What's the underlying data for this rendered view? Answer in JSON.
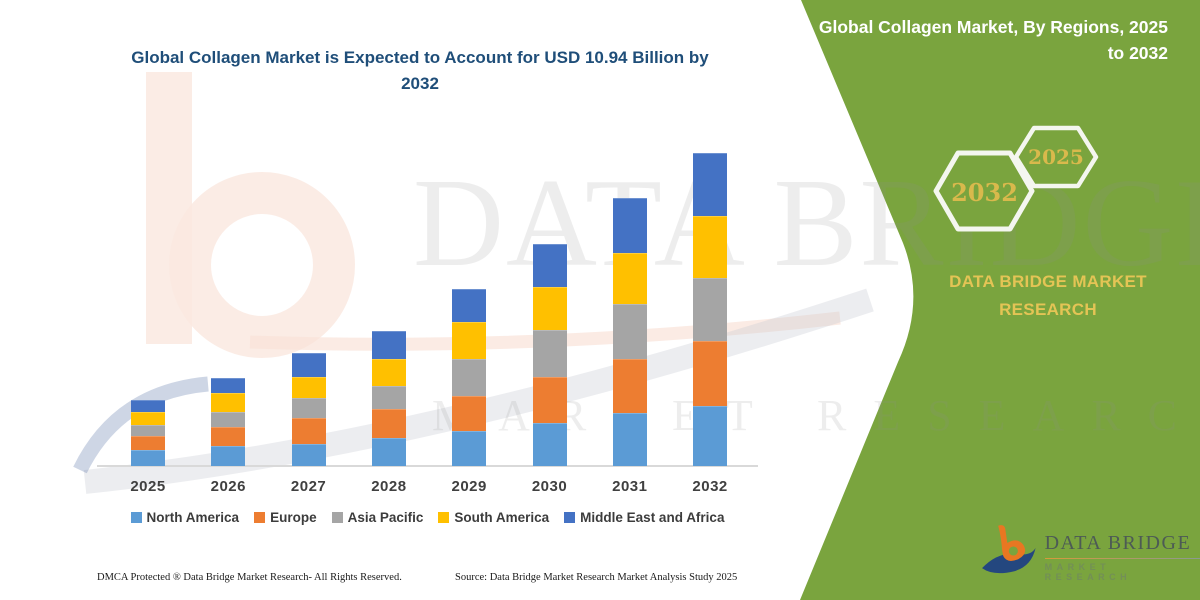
{
  "chart_title": "Global Collagen Market is Expected to Account for USD 10.94 Billion by 2032",
  "side_panel": {
    "title": "Global Collagen Market, By Regions, 2025 to 2032",
    "hexagon_large_year": "2032",
    "hexagon_small_year": "2025",
    "brand_line1": "DATA BRIDGE MARKET",
    "brand_line2": "RESEARCH",
    "panel_color": "#7AA43E",
    "accent_gold": "#D9B94C"
  },
  "watermark": {
    "line1": "DATA BRIDGE",
    "line2": "MARKET RESEARCH"
  },
  "chart_data": {
    "type": "bar",
    "stacked": true,
    "title": "Global Collagen Market is Expected to Account for USD 10.94 Billion by 2032",
    "unit": "USD Billion",
    "categories": [
      "2025",
      "2026",
      "2027",
      "2028",
      "2029",
      "2030",
      "2031",
      "2032"
    ],
    "series": [
      {
        "name": "North America",
        "color": "#5B9BD5",
        "values": [
          0.56,
          0.7,
          0.77,
          0.97,
          1.23,
          1.52,
          1.85,
          2.1
        ]
      },
      {
        "name": "Europe",
        "color": "#ED7D31",
        "values": [
          0.49,
          0.65,
          0.9,
          1.02,
          1.24,
          1.61,
          1.89,
          2.28
        ]
      },
      {
        "name": "Asia Pacific",
        "color": "#A5A5A5",
        "values": [
          0.39,
          0.52,
          0.7,
          0.82,
          1.28,
          1.66,
          1.93,
          2.2
        ]
      },
      {
        "name": "South America",
        "color": "#FFC000",
        "values": [
          0.45,
          0.68,
          0.74,
          0.93,
          1.28,
          1.52,
          1.79,
          2.16
        ]
      },
      {
        "name": "Middle East and Africa",
        "color": "#4472C4",
        "values": [
          0.42,
          0.53,
          0.84,
          0.97,
          1.17,
          1.52,
          1.93,
          2.2
        ]
      }
    ],
    "totals": [
      2.31,
      3.08,
      3.95,
      4.71,
      6.2,
      7.83,
      9.39,
      10.94
    ],
    "ylim": [
      0,
      12
    ],
    "y_axis_visible": false,
    "grid": false,
    "legend_position": "bottom"
  },
  "footer": {
    "dmca": "DMCA Protected ® Data Bridge Market Research-  All Rights Reserved.",
    "source": "Source: Data Bridge Market Research  Market Analysis Study 2025"
  },
  "logo": {
    "name": "DATA BRIDGE",
    "sub": "MARKET RESEARCH"
  }
}
